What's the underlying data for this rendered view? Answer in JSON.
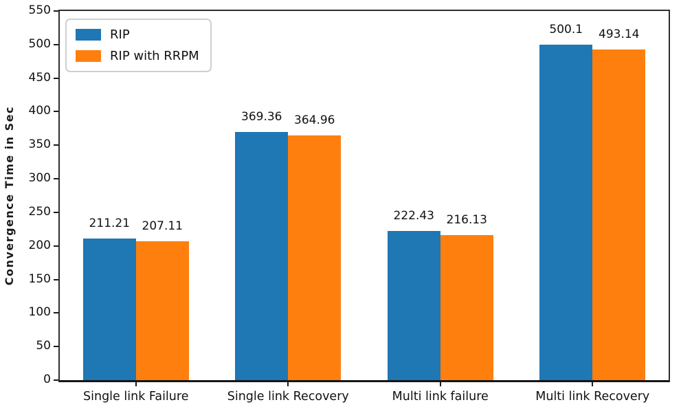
{
  "chart_data": {
    "type": "bar",
    "title": "",
    "xlabel": "",
    "ylabel": "Convergence Time in Sec",
    "ylim": [
      0,
      550
    ],
    "yticks": [
      0,
      50,
      100,
      150,
      200,
      250,
      300,
      350,
      400,
      450,
      500,
      550
    ],
    "grid": false,
    "legend_position": "upper left",
    "categories": [
      "Single link Failure",
      "Single link Recovery",
      "Multi link failure",
      "Multi link Recovery"
    ],
    "series": [
      {
        "name": "RIP",
        "color": "#1f77b4",
        "values": [
          211.21,
          369.36,
          222.43,
          500.1
        ]
      },
      {
        "name": "RIP with RRPM",
        "color": "#ff7f0e",
        "values": [
          207.11,
          364.96,
          216.13,
          493.14
        ]
      }
    ],
    "bar_value_labels": [
      [
        "211.21",
        "369.36",
        "222.43",
        "500.1"
      ],
      [
        "207.11",
        "364.96",
        "216.13",
        "493.14"
      ]
    ]
  }
}
